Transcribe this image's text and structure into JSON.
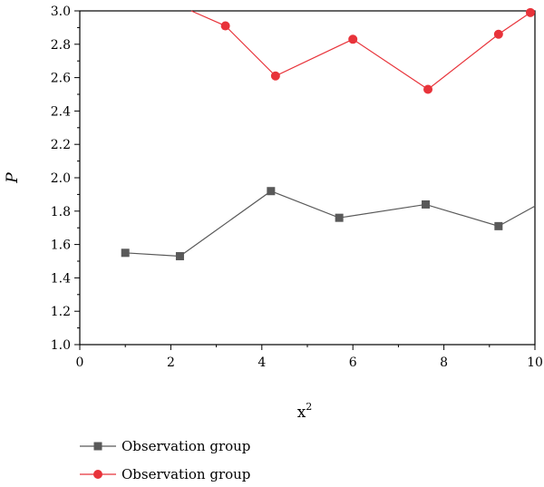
{
  "chart_data": {
    "type": "line",
    "title": "",
    "xlabel": "x",
    "xlabel_superscript": "2",
    "ylabel": "P",
    "xlim": [
      0,
      10
    ],
    "ylim": [
      1.0,
      3.0
    ],
    "xticks": [
      "0",
      "2",
      "4",
      "6",
      "8",
      "10"
    ],
    "yticks": [
      "1.0",
      "1.2",
      "1.4",
      "1.6",
      "1.8",
      "2.0",
      "2.2",
      "2.4",
      "2.6",
      "2.8",
      "3.0"
    ],
    "grid": false,
    "legend_position": "bottom-left",
    "series": [
      {
        "name": "Observation group",
        "color": "#595959",
        "marker": "square",
        "x": [
          1.0,
          2.2,
          4.2,
          5.7,
          7.6,
          9.2,
          10.0
        ],
        "y": [
          1.55,
          1.53,
          1.92,
          1.76,
          1.84,
          1.71,
          1.83
        ]
      },
      {
        "name": "Observation group",
        "color": "#e8333a",
        "marker": "circle",
        "x": [
          2.45,
          3.2,
          4.3,
          6.0,
          7.65,
          9.2,
          9.9
        ],
        "y": [
          3.0,
          2.91,
          2.61,
          2.83,
          2.53,
          2.86,
          2.99
        ]
      }
    ]
  }
}
